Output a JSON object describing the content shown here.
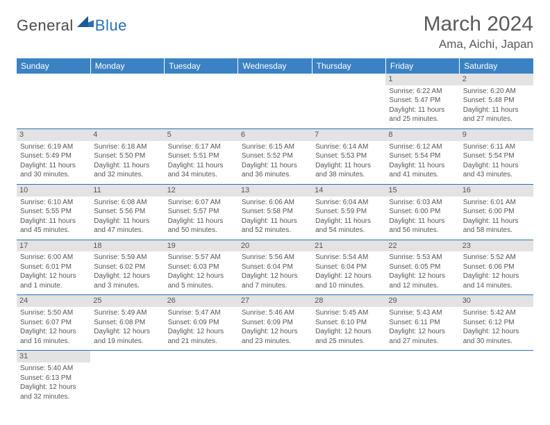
{
  "logo": {
    "general": "General",
    "blue": "Blue"
  },
  "title": "March 2024",
  "location": "Ama, Aichi, Japan",
  "colors": {
    "header_bg": "#3b82c4",
    "header_fg": "#ffffff",
    "row_divider": "#2a6fb5",
    "daynum_bg": "#e3e3e3",
    "text": "#555555",
    "logo_gray": "#4a4a4a",
    "logo_blue": "#2a6fb5"
  },
  "weekdays": [
    "Sunday",
    "Monday",
    "Tuesday",
    "Wednesday",
    "Thursday",
    "Friday",
    "Saturday"
  ],
  "weeks": [
    [
      null,
      null,
      null,
      null,
      null,
      {
        "n": "1",
        "sr": "Sunrise: 6:22 AM",
        "ss": "Sunset: 5:47 PM",
        "dl": "Daylight: 11 hours and 25 minutes."
      },
      {
        "n": "2",
        "sr": "Sunrise: 6:20 AM",
        "ss": "Sunset: 5:48 PM",
        "dl": "Daylight: 11 hours and 27 minutes."
      }
    ],
    [
      {
        "n": "3",
        "sr": "Sunrise: 6:19 AM",
        "ss": "Sunset: 5:49 PM",
        "dl": "Daylight: 11 hours and 30 minutes."
      },
      {
        "n": "4",
        "sr": "Sunrise: 6:18 AM",
        "ss": "Sunset: 5:50 PM",
        "dl": "Daylight: 11 hours and 32 minutes."
      },
      {
        "n": "5",
        "sr": "Sunrise: 6:17 AM",
        "ss": "Sunset: 5:51 PM",
        "dl": "Daylight: 11 hours and 34 minutes."
      },
      {
        "n": "6",
        "sr": "Sunrise: 6:15 AM",
        "ss": "Sunset: 5:52 PM",
        "dl": "Daylight: 11 hours and 36 minutes."
      },
      {
        "n": "7",
        "sr": "Sunrise: 6:14 AM",
        "ss": "Sunset: 5:53 PM",
        "dl": "Daylight: 11 hours and 38 minutes."
      },
      {
        "n": "8",
        "sr": "Sunrise: 6:12 AM",
        "ss": "Sunset: 5:54 PM",
        "dl": "Daylight: 11 hours and 41 minutes."
      },
      {
        "n": "9",
        "sr": "Sunrise: 6:11 AM",
        "ss": "Sunset: 5:54 PM",
        "dl": "Daylight: 11 hours and 43 minutes."
      }
    ],
    [
      {
        "n": "10",
        "sr": "Sunrise: 6:10 AM",
        "ss": "Sunset: 5:55 PM",
        "dl": "Daylight: 11 hours and 45 minutes."
      },
      {
        "n": "11",
        "sr": "Sunrise: 6:08 AM",
        "ss": "Sunset: 5:56 PM",
        "dl": "Daylight: 11 hours and 47 minutes."
      },
      {
        "n": "12",
        "sr": "Sunrise: 6:07 AM",
        "ss": "Sunset: 5:57 PM",
        "dl": "Daylight: 11 hours and 50 minutes."
      },
      {
        "n": "13",
        "sr": "Sunrise: 6:06 AM",
        "ss": "Sunset: 5:58 PM",
        "dl": "Daylight: 11 hours and 52 minutes."
      },
      {
        "n": "14",
        "sr": "Sunrise: 6:04 AM",
        "ss": "Sunset: 5:59 PM",
        "dl": "Daylight: 11 hours and 54 minutes."
      },
      {
        "n": "15",
        "sr": "Sunrise: 6:03 AM",
        "ss": "Sunset: 6:00 PM",
        "dl": "Daylight: 11 hours and 56 minutes."
      },
      {
        "n": "16",
        "sr": "Sunrise: 6:01 AM",
        "ss": "Sunset: 6:00 PM",
        "dl": "Daylight: 11 hours and 58 minutes."
      }
    ],
    [
      {
        "n": "17",
        "sr": "Sunrise: 6:00 AM",
        "ss": "Sunset: 6:01 PM",
        "dl": "Daylight: 12 hours and 1 minute."
      },
      {
        "n": "18",
        "sr": "Sunrise: 5:59 AM",
        "ss": "Sunset: 6:02 PM",
        "dl": "Daylight: 12 hours and 3 minutes."
      },
      {
        "n": "19",
        "sr": "Sunrise: 5:57 AM",
        "ss": "Sunset: 6:03 PM",
        "dl": "Daylight: 12 hours and 5 minutes."
      },
      {
        "n": "20",
        "sr": "Sunrise: 5:56 AM",
        "ss": "Sunset: 6:04 PM",
        "dl": "Daylight: 12 hours and 7 minutes."
      },
      {
        "n": "21",
        "sr": "Sunrise: 5:54 AM",
        "ss": "Sunset: 6:04 PM",
        "dl": "Daylight: 12 hours and 10 minutes."
      },
      {
        "n": "22",
        "sr": "Sunrise: 5:53 AM",
        "ss": "Sunset: 6:05 PM",
        "dl": "Daylight: 12 hours and 12 minutes."
      },
      {
        "n": "23",
        "sr": "Sunrise: 5:52 AM",
        "ss": "Sunset: 6:06 PM",
        "dl": "Daylight: 12 hours and 14 minutes."
      }
    ],
    [
      {
        "n": "24",
        "sr": "Sunrise: 5:50 AM",
        "ss": "Sunset: 6:07 PM",
        "dl": "Daylight: 12 hours and 16 minutes."
      },
      {
        "n": "25",
        "sr": "Sunrise: 5:49 AM",
        "ss": "Sunset: 6:08 PM",
        "dl": "Daylight: 12 hours and 19 minutes."
      },
      {
        "n": "26",
        "sr": "Sunrise: 5:47 AM",
        "ss": "Sunset: 6:09 PM",
        "dl": "Daylight: 12 hours and 21 minutes."
      },
      {
        "n": "27",
        "sr": "Sunrise: 5:46 AM",
        "ss": "Sunset: 6:09 PM",
        "dl": "Daylight: 12 hours and 23 minutes."
      },
      {
        "n": "28",
        "sr": "Sunrise: 5:45 AM",
        "ss": "Sunset: 6:10 PM",
        "dl": "Daylight: 12 hours and 25 minutes."
      },
      {
        "n": "29",
        "sr": "Sunrise: 5:43 AM",
        "ss": "Sunset: 6:11 PM",
        "dl": "Daylight: 12 hours and 27 minutes."
      },
      {
        "n": "30",
        "sr": "Sunrise: 5:42 AM",
        "ss": "Sunset: 6:12 PM",
        "dl": "Daylight: 12 hours and 30 minutes."
      }
    ],
    [
      {
        "n": "31",
        "sr": "Sunrise: 5:40 AM",
        "ss": "Sunset: 6:13 PM",
        "dl": "Daylight: 12 hours and 32 minutes."
      },
      null,
      null,
      null,
      null,
      null,
      null
    ]
  ]
}
